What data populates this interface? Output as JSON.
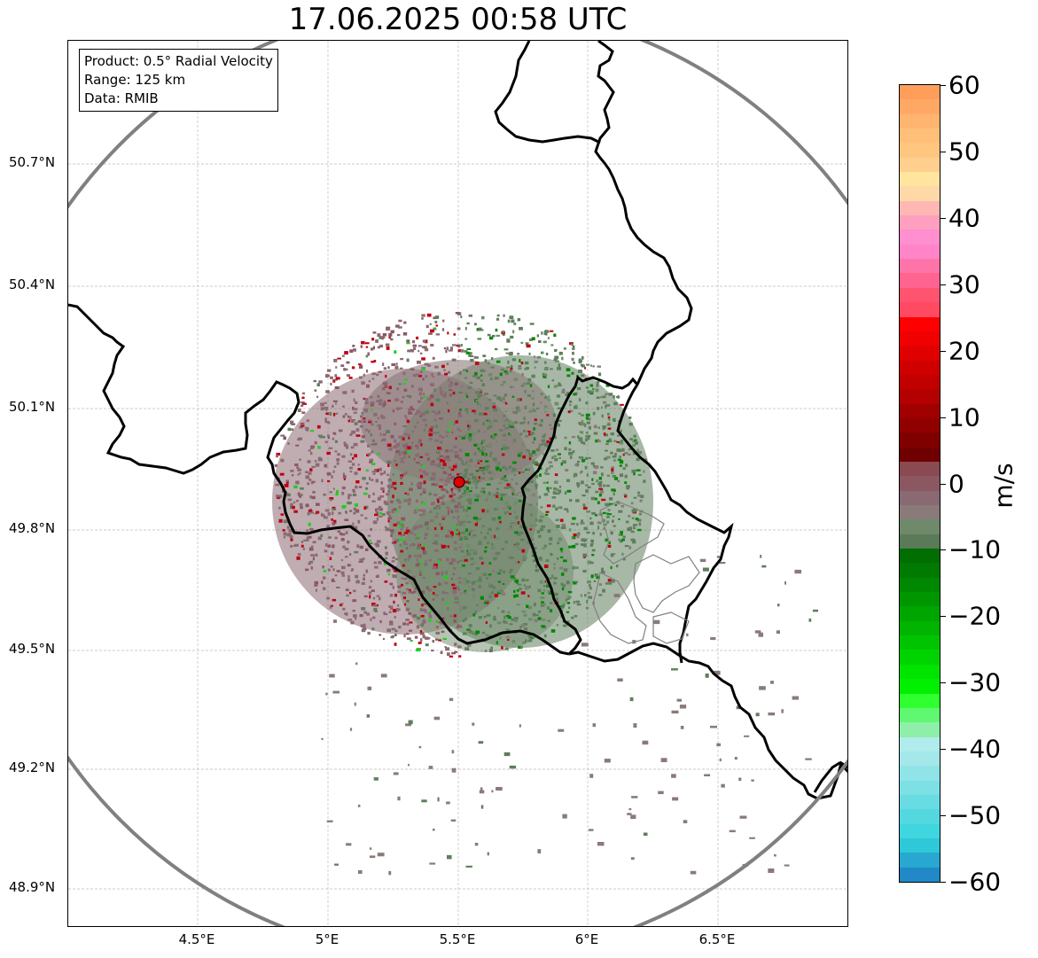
{
  "title": "17.06.2025 00:58 UTC",
  "info_box": {
    "product": "Product: 0.5° Radial Velocity",
    "range": "Range: 125 km",
    "data": "Data: RMIB"
  },
  "latitude_labels": [
    "50.7°N",
    "50.4°N",
    "50.1°N",
    "49.8°N",
    "49.5°N",
    "49.2°N",
    "48.9°N"
  ],
  "longitude_labels": [
    "4.5°E",
    "5°E",
    "5.5°E",
    "6°E",
    "6.5°E"
  ],
  "map": {
    "lon_range": [
      4.0,
      7.0
    ],
    "lat_range": [
      48.8,
      51.0
    ],
    "gridlines": true,
    "radar_site": {
      "lon": 5.505,
      "lat": 49.914,
      "color": "#e00000"
    },
    "range_ring_km": 125,
    "border_color": "#000000",
    "ring_color": "#808080"
  },
  "colorbar": {
    "label": "m/s",
    "min": -60,
    "max": 60,
    "ticks": [
      "60",
      "50",
      "40",
      "30",
      "20",
      "10",
      "0",
      "−10",
      "−20",
      "−30",
      "−40",
      "−50",
      "−60"
    ],
    "colors_top_to_bottom": [
      "#ff9e5a",
      "#ffa866",
      "#ffb56f",
      "#ffbf78",
      "#ffc680",
      "#ffcf8e",
      "#ffe59e",
      "#ffd8a8",
      "#ffb7b3",
      "#ff9fc0",
      "#ff8fcf",
      "#ff85c8",
      "#ff74a8",
      "#ff6390",
      "#ff5470",
      "#ff4a62",
      "#ff0000",
      "#f00000",
      "#e00000",
      "#d00000",
      "#c20000",
      "#b40000",
      "#a00000",
      "#900000",
      "#800000",
      "#700000",
      "#8a4a52",
      "#8b5862",
      "#8a6a72",
      "#8a7a7a",
      "#6e8a6a",
      "#5a7a58",
      "#006e00",
      "#007a00",
      "#008800",
      "#009600",
      "#00a600",
      "#00b400",
      "#00c400",
      "#00d400",
      "#00e400",
      "#00f000",
      "#30ff30",
      "#60f870",
      "#8ef0a8",
      "#b0ecec",
      "#a4e8ea",
      "#90e4e8",
      "#7ce0e4",
      "#68dce2",
      "#54d8e0",
      "#40d6e0",
      "#2ec8d8",
      "#28a8d0",
      "#2288c8"
    ]
  }
}
